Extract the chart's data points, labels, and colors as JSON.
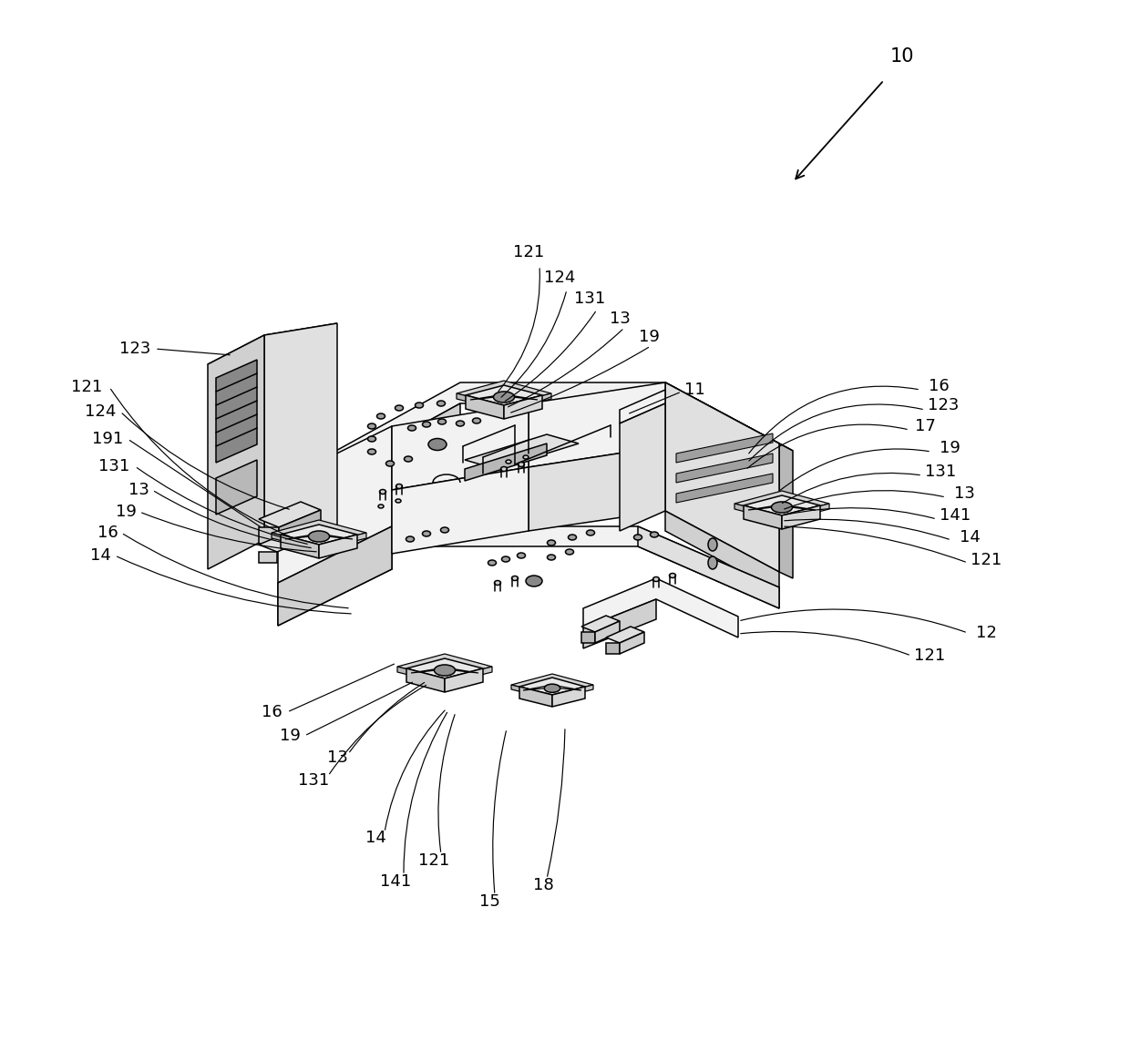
{
  "bg_color": "#ffffff",
  "lc": "#000000",
  "lw": 1.1,
  "figsize": [
    12.4,
    11.42
  ],
  "dpi": 100
}
